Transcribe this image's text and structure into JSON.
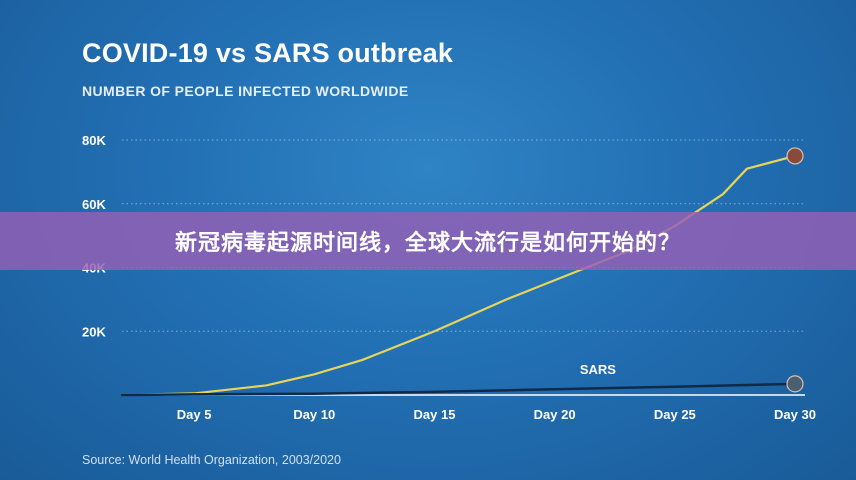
{
  "chart_data": {
    "type": "line",
    "title": "COVID-19 vs SARS outbreak",
    "subtitle": "NUMBER OF PEOPLE INFECTED WORLDWIDE",
    "xlabel": "",
    "ylabel": "",
    "categories": [
      "Day 5",
      "Day 10",
      "Day 15",
      "Day 20",
      "Day 25",
      "Day 30"
    ],
    "x_ticks": [
      5,
      10,
      15,
      20,
      25,
      30
    ],
    "xlim": [
      2,
      30
    ],
    "ylim": [
      0,
      80000
    ],
    "y_ticks": [
      20000,
      40000,
      60000,
      80000
    ],
    "y_tick_labels": [
      "20K",
      "40K",
      "60K",
      "80K"
    ],
    "grid": "horizontal dotted",
    "series": [
      {
        "name": "",
        "color": "#e7d45a",
        "x": [
          2,
          5,
          8,
          10,
          12,
          15,
          18,
          20,
          23,
          25,
          27,
          28,
          30
        ],
        "values": [
          0,
          500,
          3000,
          6500,
          11000,
          20000,
          30000,
          36000,
          45000,
          53000,
          63000,
          71000,
          75000
        ]
      },
      {
        "name": "SARS",
        "color": "#102a4a",
        "x": [
          2,
          5,
          10,
          15,
          20,
          25,
          30
        ],
        "values": [
          0,
          200,
          400,
          1000,
          1800,
          2600,
          3500
        ]
      }
    ]
  },
  "footer": {
    "source": "Source: World Health Organization, 2003/2020"
  },
  "banner": {
    "text": "新冠病毒起源时间线，全球大流行是如何开始的？"
  },
  "colors": {
    "background": "#226fb3",
    "banner": "#965fb4",
    "grid": "#ffffff"
  }
}
